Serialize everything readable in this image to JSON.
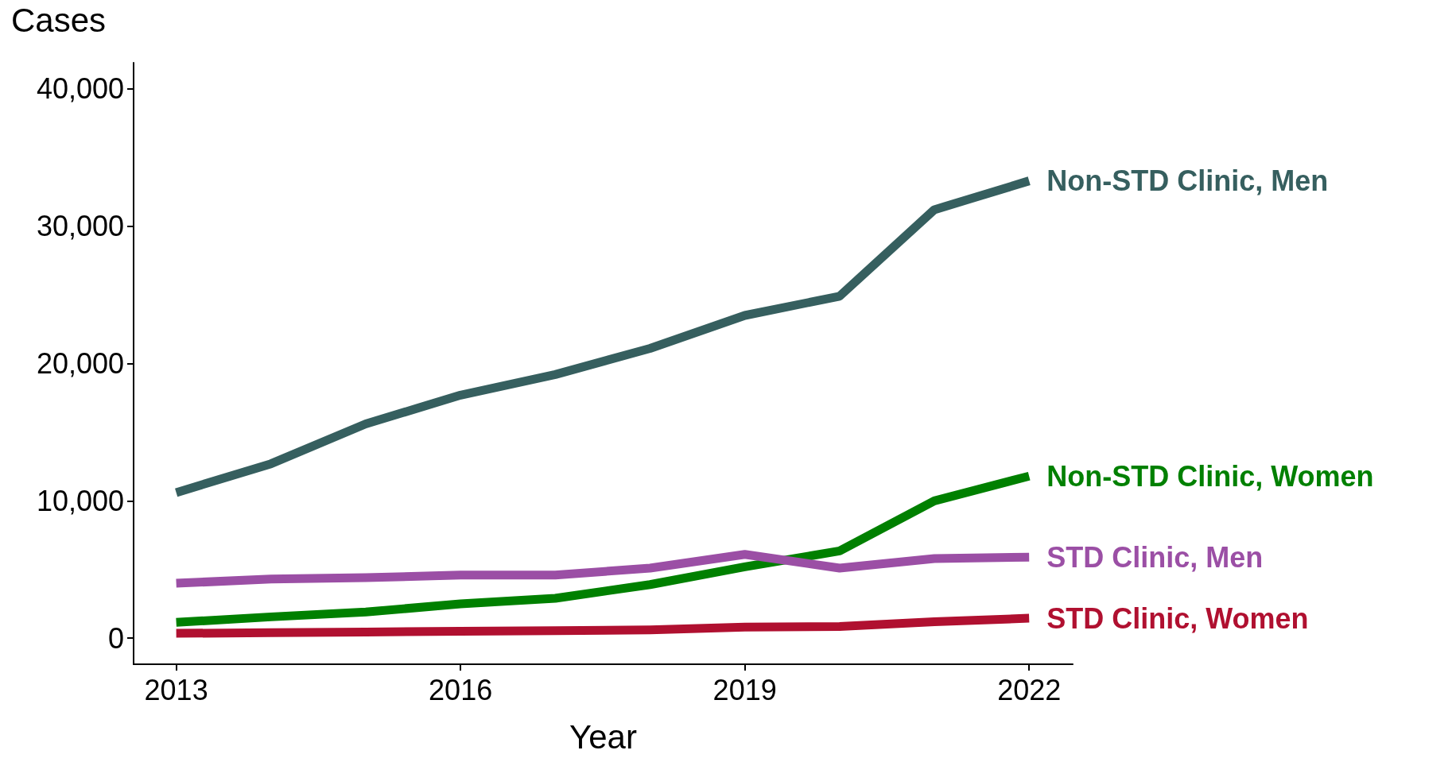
{
  "chart_data": {
    "type": "line",
    "xlabel": "Year",
    "ylabel": "Cases",
    "x": [
      2013,
      2014,
      2015,
      2016,
      2017,
      2018,
      2019,
      2020,
      2021,
      2022
    ],
    "xlim": [
      2012.55,
      2022.46
    ],
    "xticks": [
      2013,
      2016,
      2019,
      2022
    ],
    "ylim": [
      -1900,
      41900
    ],
    "yticks": [
      0,
      {
        "value": 10000,
        "label": "10,000"
      },
      {
        "value": 20000,
        "label": "20,000"
      },
      {
        "value": 30000,
        "label": "30,000"
      },
      {
        "value": 40000,
        "label": "40,000"
      }
    ],
    "grid": false,
    "legend": false,
    "marker": "none",
    "line_style": "solid",
    "series": [
      {
        "name": "Non-STD Clinic, Men",
        "color": "#365f5f",
        "values": [
          10600,
          12700,
          15600,
          17700,
          19200,
          21100,
          23500,
          24900,
          31200,
          33300
        ]
      },
      {
        "name": "Non-STD Clinic, Women",
        "color": "#008000",
        "values": [
          1150,
          1550,
          1900,
          2500,
          2900,
          3900,
          5200,
          6350,
          10000,
          11800
        ]
      },
      {
        "name": "STD Clinic, Men",
        "color": "#9b4fa5",
        "values": [
          4000,
          4300,
          4400,
          4600,
          4600,
          5100,
          6100,
          5100,
          5800,
          5900
        ]
      },
      {
        "name": "STD Clinic, Women",
        "color": "#b01030",
        "values": [
          350,
          400,
          450,
          500,
          550,
          600,
          800,
          850,
          1200,
          1450
        ]
      }
    ]
  }
}
